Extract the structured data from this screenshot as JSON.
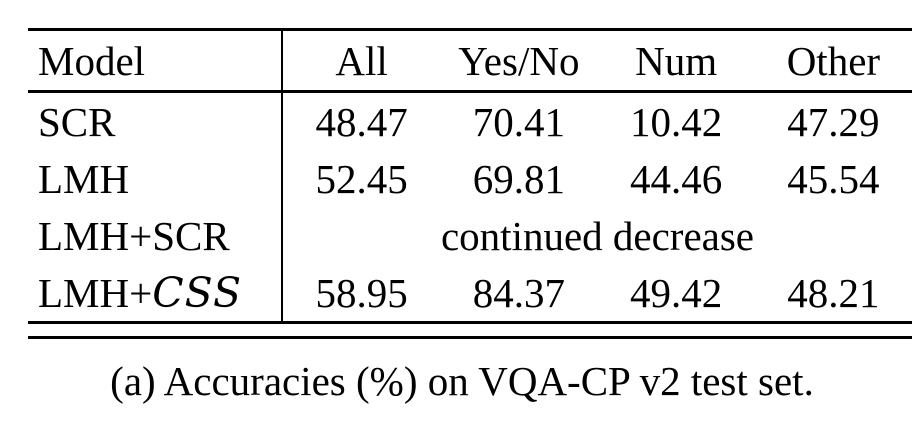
{
  "colors": {
    "background": "#ffffff",
    "text": "#000000",
    "rule": "#000000"
  },
  "table": {
    "columns": [
      "Model",
      "All",
      "Yes/No",
      "Num",
      "Other"
    ],
    "rows": [
      {
        "model_plain": "SCR",
        "model_script": "",
        "values": [
          "48.47",
          "70.41",
          "10.42",
          "47.29"
        ],
        "note": ""
      },
      {
        "model_plain": "LMH",
        "model_script": "",
        "values": [
          "52.45",
          "69.81",
          "44.46",
          "45.54"
        ],
        "note": ""
      },
      {
        "model_plain": "LMH+SCR",
        "model_script": "",
        "values": [],
        "note": "continued decrease"
      },
      {
        "model_plain": "LMH+",
        "model_script": "CSS",
        "values": [
          "58.95",
          "84.37",
          "49.42",
          "48.21"
        ],
        "note": ""
      }
    ]
  },
  "caption": "(a) Accuracies (%) on VQA-CP v2 test set.",
  "chart_data": {
    "type": "table",
    "title": "(a) Accuracies (%) on VQA-CP v2 test set.",
    "columns": [
      "Model",
      "All",
      "Yes/No",
      "Num",
      "Other"
    ],
    "rows": [
      [
        "SCR",
        48.47,
        70.41,
        10.42,
        47.29
      ],
      [
        "LMH",
        52.45,
        69.81,
        44.46,
        45.54
      ],
      [
        "LMH+SCR",
        "continued decrease",
        "continued decrease",
        "continued decrease",
        "continued decrease"
      ],
      [
        "LMH+CSS",
        58.95,
        84.37,
        49.42,
        48.21
      ]
    ]
  }
}
